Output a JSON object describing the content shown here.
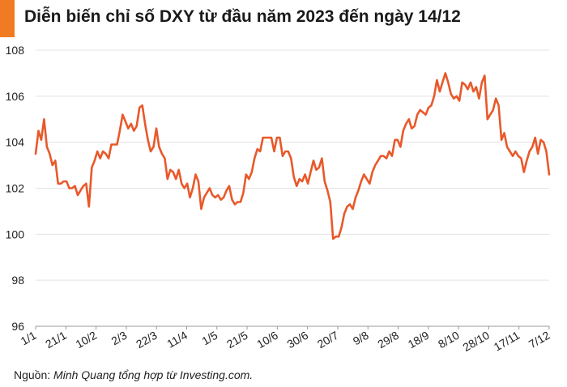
{
  "header": {
    "title": "Diễn biến chỉ số DXY từ đầu năm 2023 đến ngày 14/12",
    "accent_color": "#f07b23"
  },
  "source": {
    "label": "Nguồn:",
    "text": "Minh Quang tổng hợp từ Investing.com."
  },
  "chart_data": {
    "type": "line",
    "title": "Diễn biến chỉ số DXY từ đầu năm 2023 đến ngày 14/12",
    "xlabel": "",
    "ylabel": "",
    "ylim": [
      96,
      108
    ],
    "yticks": [
      96,
      98,
      100,
      102,
      104,
      106,
      108
    ],
    "xtick_labels": [
      "1/1",
      "21/1",
      "10/2",
      "2/3",
      "22/3",
      "11/4",
      "1/5",
      "21/5",
      "10/6",
      "30/6",
      "20/7",
      "9/8",
      "29/8",
      "18/9",
      "8/10",
      "28/10",
      "17/11",
      "7/12"
    ],
    "grid": "horizontal",
    "legend": "none",
    "line_color": "#e8592a",
    "series": [
      {
        "values": [
          103.5,
          104.5,
          104.1,
          105.0,
          103.8,
          103.5,
          103.0,
          103.2,
          102.2,
          102.2,
          102.3,
          102.3,
          102.0,
          102.0,
          102.1,
          101.7,
          101.9,
          102.1,
          102.2,
          101.2,
          102.9,
          103.2,
          103.6,
          103.3,
          103.6,
          103.5,
          103.3,
          103.9,
          103.9,
          103.9,
          104.5,
          105.2,
          104.9,
          104.6,
          104.8,
          104.5,
          104.7,
          105.5,
          105.6,
          104.8,
          104.1,
          103.6,
          103.8,
          104.6,
          103.8,
          103.5,
          103.3,
          102.4,
          102.8,
          102.7,
          102.4,
          102.8,
          102.2,
          102.0,
          102.2,
          101.6,
          102.0,
          102.6,
          102.3,
          101.1,
          101.6,
          101.8,
          102.0,
          101.7,
          101.6,
          101.7,
          101.5,
          101.6,
          101.9,
          102.1,
          101.5,
          101.3,
          101.4,
          101.4,
          101.8,
          102.6,
          102.4,
          102.7,
          103.3,
          103.7,
          103.6,
          104.2,
          104.2,
          104.2,
          104.2,
          103.6,
          104.2,
          104.2,
          103.4,
          103.6,
          103.6,
          103.3,
          102.5,
          102.1,
          102.4,
          102.3,
          102.6,
          102.2,
          102.7,
          103.2,
          102.8,
          102.9,
          103.3,
          102.3,
          101.9,
          101.4,
          99.8,
          99.9,
          99.9,
          100.3,
          100.9,
          101.2,
          101.3,
          101.1,
          101.6,
          101.9,
          102.3,
          102.6,
          102.4,
          102.2,
          102.7,
          103.0,
          103.2,
          103.4,
          103.4,
          103.3,
          103.6,
          103.4,
          104.1,
          104.1,
          103.8,
          104.5,
          104.8,
          105.0,
          104.6,
          104.7,
          105.2,
          105.4,
          105.3,
          105.2,
          105.5,
          105.6,
          106.0,
          106.7,
          106.2,
          106.6,
          107.0,
          106.6,
          106.1,
          105.9,
          106.0,
          105.8,
          106.6,
          106.5,
          106.3,
          106.6,
          106.2,
          106.4,
          105.9,
          106.6,
          106.9,
          105.0,
          105.2,
          105.4,
          105.9,
          105.6,
          104.1,
          104.4,
          103.8,
          103.6,
          103.4,
          103.6,
          103.4,
          103.3,
          102.7,
          103.2,
          103.6,
          103.8,
          104.2,
          103.5,
          104.1,
          104.0,
          103.6,
          102.6
        ]
      }
    ]
  }
}
